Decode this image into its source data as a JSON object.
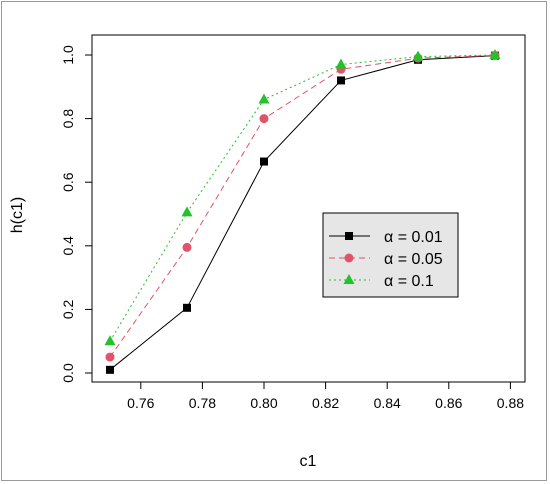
{
  "chart_data": {
    "type": "line",
    "title": "",
    "xlabel": "c1",
    "ylabel": "h(c1)",
    "xlim": [
      0.75,
      0.875
    ],
    "ylim": [
      0.0,
      1.0
    ],
    "x_ticks": [
      "0.76",
      "0.78",
      "0.80",
      "0.82",
      "0.84",
      "0.86",
      "0.88"
    ],
    "y_ticks": [
      "0.0",
      "0.2",
      "0.4",
      "0.6",
      "0.8",
      "1.0"
    ],
    "x": [
      0.75,
      0.775,
      0.8,
      0.825,
      0.85,
      0.875
    ],
    "series": [
      {
        "name": "α = 0.01",
        "marker": "square",
        "line": "solid",
        "color": "#000000",
        "values": [
          0.01,
          0.205,
          0.665,
          0.92,
          0.985,
          0.998
        ]
      },
      {
        "name": "α = 0.05",
        "marker": "circle",
        "line": "dashed",
        "color": "#df536b",
        "values": [
          0.05,
          0.395,
          0.8,
          0.955,
          0.99,
          0.999
        ]
      },
      {
        "name": "α = 0.1",
        "marker": "triangle",
        "line": "dotted",
        "color": "#22c22a",
        "values": [
          0.1,
          0.505,
          0.86,
          0.97,
          0.995,
          1.0
        ]
      }
    ],
    "grid": false,
    "legend_position": "right-center"
  }
}
